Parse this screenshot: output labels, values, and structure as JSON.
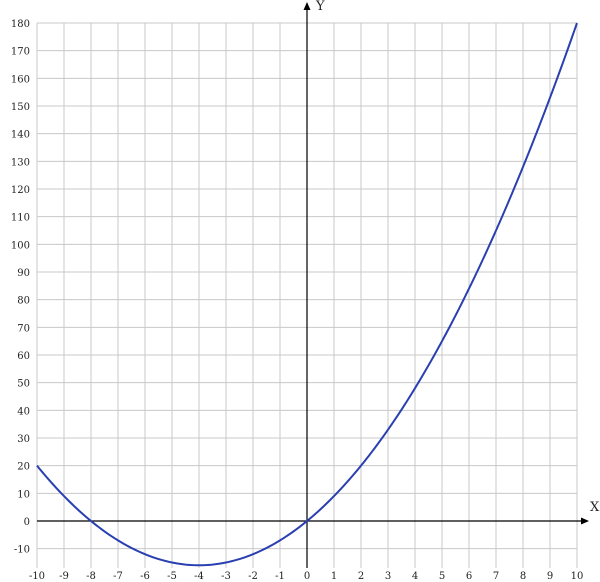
{
  "chart_data": {
    "type": "line",
    "xlabel": "X",
    "ylabel": "Y",
    "xlim": [
      -10,
      10
    ],
    "ylim": [
      -17,
      180
    ],
    "grid": true,
    "x_ticks": [
      -10,
      -9,
      -8,
      -7,
      -6,
      -5,
      -4,
      -3,
      -2,
      -1,
      0,
      1,
      2,
      3,
      4,
      5,
      6,
      7,
      8,
      9,
      10
    ],
    "y_ticks": [
      -10,
      0,
      10,
      20,
      30,
      40,
      50,
      60,
      70,
      80,
      90,
      100,
      110,
      120,
      130,
      140,
      150,
      160,
      170,
      180
    ],
    "series": [
      {
        "color": "#2a3fb0",
        "x": [
          -10,
          -9,
          -8,
          -7,
          -6,
          -5,
          -4,
          -3,
          -2,
          -1,
          0,
          1,
          2,
          3,
          4,
          5,
          6,
          7,
          8,
          9,
          10
        ],
        "y": [
          20,
          9,
          0,
          -7,
          -12,
          -15,
          -16,
          -15,
          -12,
          -7,
          0,
          9,
          20,
          33,
          48,
          65,
          84,
          105,
          128,
          153,
          180
        ]
      }
    ]
  }
}
